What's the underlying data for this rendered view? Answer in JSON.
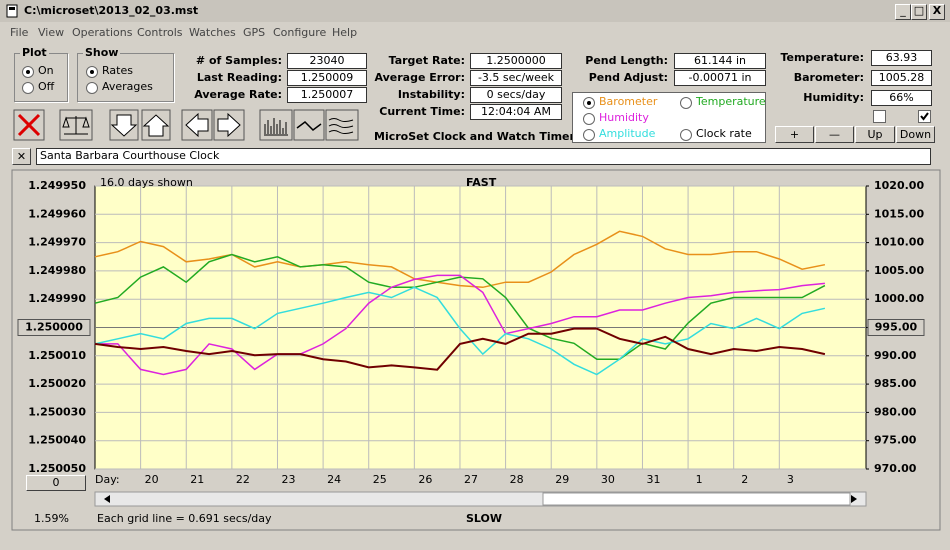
{
  "ui": {
    "title": "C:\\microset\\2013_02_03.mst",
    "menu": [
      "File",
      "View",
      "Operations",
      "Controls",
      "Watches",
      "GPS",
      "Configure",
      "Help"
    ],
    "plot_group": {
      "title": "Plot",
      "options": [
        "On",
        "Off"
      ]
    },
    "show_group": {
      "title": "Show",
      "options": [
        "Rates",
        "Averages"
      ]
    },
    "fields_1": [
      {
        "label": "# of Samples:",
        "value": "23040"
      },
      {
        "label": "Last Reading:",
        "value": "1.250009"
      },
      {
        "label": "Average Rate:",
        "value": "1.250007"
      }
    ],
    "fields_2": [
      {
        "label": "Target Rate:",
        "value": "1.2500000"
      },
      {
        "label": "Average Error:",
        "value": "-3.5 sec/week"
      },
      {
        "label": "Instability:",
        "value": "0 secs/day"
      },
      {
        "label": "Current Time:",
        "value": "12:04:04 AM"
      }
    ],
    "app_name": "MicroSet Clock and Watch Timer",
    "fields_3": [
      {
        "label": "Pend Length:",
        "value": "61.144 in"
      },
      {
        "label": "Pend Adjust:",
        "value": "-0.00071 in"
      }
    ],
    "fields_4": [
      {
        "label": "Temperature:",
        "value": "63.93"
      },
      {
        "label": "Barometer:",
        "value": "1005.28"
      },
      {
        "label": "Humidity:",
        "value": "66%"
      }
    ],
    "buttons": [
      "+",
      "—",
      "Up",
      "Down"
    ],
    "clock_name": "Santa Barbara Courthouse Clock",
    "days_shown": "16.0 days shown",
    "fast": "FAST",
    "slow": "SLOW",
    "percent": "1.59%",
    "grid_note": "Each grid line = 0.691 secs/day",
    "offset_button": "0"
  },
  "chart_data": {
    "type": "line",
    "x_label": "Day:",
    "x": [
      19,
      19.5,
      20,
      20.5,
      21,
      21.5,
      22,
      22.5,
      23,
      23.5,
      24,
      24.5,
      25,
      25.5,
      26,
      26.5,
      27,
      27.5,
      28,
      28.5,
      29,
      29.5,
      30,
      30.5,
      31,
      31.5,
      32,
      32.5,
      33,
      33.5,
      34,
      34.5,
      35
    ],
    "xlim": [
      19,
      35.9
    ],
    "xticks": [
      20,
      21,
      22,
      23,
      24,
      25,
      26,
      27,
      28,
      29,
      30,
      31,
      {
        "value": 32,
        "label": "1"
      },
      {
        "value": 33,
        "label": "2"
      },
      {
        "value": 34,
        "label": "3"
      }
    ],
    "ylim": [
      1.25005,
      1.24995
    ],
    "yticks": [
      {
        "value": 1.24995,
        "label": "1.249950"
      },
      {
        "value": 1.24996,
        "label": "1.249960"
      },
      {
        "value": 1.24997,
        "label": "1.249970"
      },
      {
        "value": 1.24998,
        "label": "1.249980"
      },
      {
        "value": 1.24999,
        "label": "1.249990"
      },
      {
        "value": 1.25,
        "label": "1.250000"
      },
      {
        "value": 1.25001,
        "label": "1.250010"
      },
      {
        "value": 1.25002,
        "label": "1.250020"
      },
      {
        "value": 1.25003,
        "label": "1.250030"
      },
      {
        "value": 1.25004,
        "label": "1.250040"
      },
      {
        "value": 1.25005,
        "label": "1.250050"
      }
    ],
    "y2lim": [
      970,
      1020
    ],
    "y2ticks": [
      {
        "value": 1020,
        "label": "1020.00"
      },
      {
        "value": 1015,
        "label": "1015.00"
      },
      {
        "value": 1010,
        "label": "1010.00"
      },
      {
        "value": 1005,
        "label": "1005.00"
      },
      {
        "value": 1000,
        "label": "1000.00"
      },
      {
        "value": 995,
        "label": "995.00"
      },
      {
        "value": 990,
        "label": "990.00"
      },
      {
        "value": 985,
        "label": "985.00"
      },
      {
        "value": 980,
        "label": "980.00"
      },
      {
        "value": 975,
        "label": "975.00"
      },
      {
        "value": 970,
        "label": "970.00"
      }
    ],
    "grid": true,
    "series": [
      {
        "name": "Barometer",
        "color": "#e8901a",
        "axis": "y2",
        "values": [
          1007.5,
          1008.4,
          1010.2,
          1009.3,
          1006.6,
          1007.1,
          1007.9,
          1005.7,
          1006.6,
          1005.7,
          1006.1,
          1006.6,
          1006.1,
          1005.7,
          1003.6,
          1003.0,
          1002.4,
          1002.1,
          1003.0,
          1003.0,
          1004.8,
          1007.9,
          1009.7,
          1012.0,
          1011.1,
          1008.9,
          1007.9,
          1007.9,
          1008.4,
          1008.4,
          1007.1,
          1005.3,
          1006.1
        ]
      },
      {
        "name": "Temperature",
        "color": "#22aa22",
        "axis": "y2",
        "values": [
          999.3,
          1000.3,
          1003.9,
          1005.7,
          1003.0,
          1006.6,
          1007.9,
          1006.6,
          1007.5,
          1005.7,
          1006.1,
          1005.7,
          1003.0,
          1002.1,
          1002.1,
          1003.0,
          1003.9,
          1003.6,
          1000.3,
          994.9,
          993.1,
          992.2,
          989.4,
          989.4,
          992.2,
          991.2,
          995.8,
          999.3,
          1000.3,
          1000.3,
          1000.3,
          1000.3,
          1002.4
        ]
      },
      {
        "name": "Humidity",
        "color": "#dd22dd",
        "axis": "y2",
        "values": [
          992.1,
          992.1,
          987.6,
          986.7,
          987.6,
          992.1,
          991.2,
          987.6,
          990.3,
          990.3,
          992.1,
          994.8,
          999.3,
          1002.1,
          1003.5,
          1004.2,
          1004.2,
          1001.2,
          993.9,
          994.8,
          995.7,
          996.9,
          996.9,
          998.1,
          998.1,
          999.3,
          1000.3,
          1000.6,
          1001.2,
          1001.5,
          1001.7,
          1002.4,
          1002.8
        ]
      },
      {
        "name": "Amplitude",
        "color": "#33dddd",
        "axis": "y2",
        "values": [
          992.1,
          993.0,
          993.9,
          993.0,
          995.7,
          996.6,
          996.6,
          994.8,
          997.5,
          998.4,
          999.3,
          1000.3,
          1001.2,
          1000.3,
          1002.1,
          1000.3,
          994.8,
          990.3,
          993.9,
          993.0,
          991.2,
          988.5,
          986.7,
          989.4,
          993.0,
          992.1,
          993.0,
          995.7,
          994.8,
          996.6,
          994.8,
          997.5,
          998.4
        ]
      },
      {
        "name": "Clock rate",
        "color": "#700000",
        "axis": "y",
        "values": [
          1.2500058,
          1.2500069,
          1.2500076,
          1.2500069,
          1.2500083,
          1.2500094,
          1.2500083,
          1.2500098,
          1.2500094,
          1.2500094,
          1.2500112,
          1.250012,
          1.2500141,
          1.2500134,
          1.2500141,
          1.2500149,
          1.2500058,
          1.250004,
          1.2500058,
          1.2500022,
          1.2500022,
          1.2500004,
          1.2500004,
          1.250004,
          1.2500058,
          1.2500033,
          1.2500076,
          1.2500094,
          1.2500076,
          1.2500083,
          1.2500069,
          1.2500076,
          1.2500094
        ]
      }
    ]
  }
}
